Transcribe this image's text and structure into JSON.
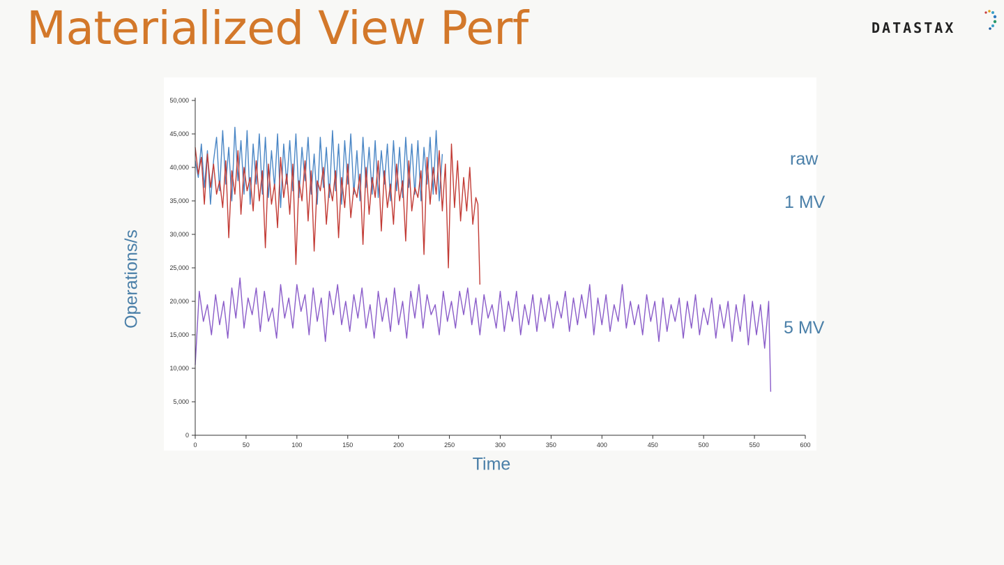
{
  "slide": {
    "title": "Materialized View Perf"
  },
  "logo": {
    "text": "DATASTAX"
  },
  "colors": {
    "title": "#d3782a",
    "label": "#4a7fa8",
    "raw": "#4a86c5",
    "mv1": "#c23b35",
    "mv5": "#8a5cc9"
  },
  "chart_data": {
    "type": "line",
    "xlabel": "Time",
    "ylabel": "Operations/s",
    "xlim": [
      0,
      600
    ],
    "ylim": [
      0,
      50000
    ],
    "x_ticks": [
      0,
      50,
      100,
      150,
      200,
      250,
      300,
      350,
      400,
      450,
      500,
      550,
      600
    ],
    "y_ticks": [
      0,
      5000,
      10000,
      15000,
      20000,
      25000,
      30000,
      35000,
      40000,
      45000,
      50000
    ],
    "x_tick_labels": [
      "0",
      "50",
      "100",
      "150",
      "200",
      "250",
      "300",
      "350",
      "400",
      "450",
      "500",
      "550",
      "600"
    ],
    "y_tick_labels": [
      "0",
      "5,000",
      "10,000",
      "15,000",
      "20,000",
      "25,000",
      "30,000",
      "35,000",
      "40,000",
      "45,000",
      "50,000"
    ],
    "grid": false,
    "series": [
      {
        "name": "raw",
        "color": "#4a86c5",
        "x": [
          0,
          3,
          6,
          9,
          12,
          15,
          18,
          21,
          24,
          27,
          30,
          33,
          36,
          39,
          42,
          45,
          48,
          51,
          54,
          57,
          60,
          63,
          66,
          69,
          72,
          75,
          78,
          81,
          84,
          87,
          90,
          93,
          96,
          99,
          102,
          105,
          108,
          111,
          114,
          117,
          120,
          123,
          126,
          129,
          132,
          135,
          138,
          141,
          144,
          147,
          150,
          153,
          156,
          159,
          162,
          165,
          168,
          171,
          174,
          177,
          180,
          183,
          186,
          189,
          192,
          195,
          198,
          201,
          204,
          207,
          210,
          213,
          216,
          219,
          222,
          225,
          228,
          231,
          234,
          237,
          240,
          243
        ],
        "y": [
          41000,
          38500,
          43500,
          37000,
          42500,
          34500,
          41000,
          44500,
          36500,
          45500,
          37500,
          43000,
          35000,
          46000,
          38000,
          44000,
          36000,
          45500,
          34500,
          43500,
          37500,
          45000,
          36000,
          44500,
          35500,
          42500,
          37000,
          45000,
          34000,
          43500,
          37500,
          44000,
          36500,
          45000,
          35500,
          43000,
          38000,
          44500,
          36000,
          42000,
          34500,
          44500,
          37000,
          43000,
          35500,
          45500,
          36500,
          43500,
          34500,
          44000,
          37500,
          45000,
          36000,
          42500,
          35000,
          44500,
          37000,
          43000,
          36000,
          44000,
          35500,
          42500,
          37500,
          43500,
          35000,
          44000,
          36500,
          43000,
          35500,
          44500,
          37000,
          43500,
          36000,
          44000,
          35000,
          43000,
          37500,
          44500,
          36000,
          45500,
          35000,
          42000
        ]
      },
      {
        "name": "1 MV",
        "color": "#c23b35",
        "x": [
          0,
          3,
          6,
          9,
          12,
          15,
          18,
          21,
          24,
          27,
          30,
          33,
          36,
          39,
          42,
          45,
          48,
          51,
          54,
          57,
          60,
          63,
          66,
          69,
          72,
          75,
          78,
          81,
          84,
          87,
          90,
          93,
          96,
          99,
          102,
          105,
          108,
          111,
          114,
          117,
          120,
          123,
          126,
          129,
          132,
          135,
          138,
          141,
          144,
          147,
          150,
          153,
          156,
          159,
          162,
          165,
          168,
          171,
          174,
          177,
          180,
          183,
          186,
          189,
          192,
          195,
          198,
          201,
          204,
          207,
          210,
          213,
          216,
          219,
          222,
          225,
          228,
          231,
          234,
          237,
          240,
          243,
          246,
          249,
          252,
          255,
          258,
          261,
          264,
          267,
          270,
          273,
          276,
          278,
          280
        ],
        "y": [
          43000,
          39000,
          41500,
          34500,
          42000,
          37000,
          40500,
          36000,
          38000,
          34000,
          41000,
          29500,
          39500,
          36000,
          42500,
          33000,
          40000,
          36500,
          38500,
          33500,
          41000,
          35000,
          39500,
          28000,
          40500,
          34500,
          37500,
          31000,
          41500,
          35500,
          39000,
          33000,
          40500,
          25500,
          38000,
          35000,
          41000,
          32000,
          39500,
          27500,
          38000,
          36500,
          40000,
          31500,
          37500,
          35000,
          39500,
          29500,
          38500,
          34000,
          40500,
          32500,
          37000,
          35500,
          39000,
          28500,
          40000,
          33000,
          38500,
          35500,
          41000,
          30500,
          39500,
          34000,
          37500,
          31500,
          40500,
          35000,
          38000,
          29000,
          41000,
          33500,
          37000,
          35500,
          39500,
          27000,
          41500,
          34500,
          40000,
          36000,
          42500,
          33500,
          40500,
          25000,
          43500,
          34000,
          41000,
          32000,
          38500,
          33500,
          40000,
          31500,
          35500,
          34500,
          22500
        ]
      },
      {
        "name": "5 MV",
        "color": "#8a5cc9",
        "x": [
          0,
          4,
          8,
          12,
          16,
          20,
          24,
          28,
          32,
          36,
          40,
          44,
          48,
          52,
          56,
          60,
          64,
          68,
          72,
          76,
          80,
          84,
          88,
          92,
          96,
          100,
          104,
          108,
          112,
          116,
          120,
          124,
          128,
          132,
          136,
          140,
          144,
          148,
          152,
          156,
          160,
          164,
          168,
          172,
          176,
          180,
          184,
          188,
          192,
          196,
          200,
          204,
          208,
          212,
          216,
          220,
          224,
          228,
          232,
          236,
          240,
          244,
          248,
          252,
          256,
          260,
          264,
          268,
          272,
          276,
          280,
          284,
          288,
          292,
          296,
          300,
          304,
          308,
          312,
          316,
          320,
          324,
          328,
          332,
          336,
          340,
          344,
          348,
          352,
          356,
          360,
          364,
          368,
          372,
          376,
          380,
          384,
          388,
          392,
          396,
          400,
          404,
          408,
          412,
          416,
          420,
          424,
          428,
          432,
          436,
          440,
          444,
          448,
          452,
          456,
          460,
          464,
          468,
          472,
          476,
          480,
          484,
          488,
          492,
          496,
          500,
          504,
          508,
          512,
          516,
          520,
          524,
          528,
          532,
          536,
          540,
          544,
          548,
          552,
          556,
          560,
          564,
          566
        ],
        "y": [
          10500,
          21500,
          17000,
          19500,
          15000,
          21000,
          16500,
          20000,
          14500,
          22000,
          17500,
          23500,
          16000,
          20500,
          18000,
          22000,
          15500,
          21500,
          17000,
          19000,
          14500,
          22500,
          17500,
          20500,
          16000,
          22500,
          18500,
          21000,
          15000,
          22000,
          17000,
          20500,
          14000,
          21500,
          18000,
          22500,
          16500,
          20000,
          15500,
          21000,
          17500,
          22000,
          16000,
          19500,
          14500,
          21500,
          17000,
          20500,
          15500,
          22000,
          16500,
          20000,
          14500,
          21500,
          17500,
          22500,
          16000,
          21000,
          18000,
          19500,
          15000,
          21500,
          17000,
          20000,
          16000,
          21500,
          18000,
          22000,
          16500,
          20500,
          15000,
          21000,
          17500,
          19500,
          16000,
          21500,
          15500,
          20000,
          17000,
          21500,
          15000,
          19500,
          16500,
          21000,
          15500,
          20500,
          17000,
          21000,
          16000,
          20000,
          17500,
          21500,
          15500,
          20500,
          16500,
          21000,
          17500,
          22500,
          15000,
          20500,
          16500,
          21000,
          15500,
          19500,
          17000,
          22500,
          16000,
          20000,
          16500,
          19500,
          15000,
          21000,
          17000,
          20000,
          14000,
          20500,
          15500,
          19500,
          17000,
          20500,
          14500,
          20000,
          16000,
          21000,
          15000,
          19000,
          16500,
          20500,
          14500,
          19500,
          16000,
          20000,
          14000,
          19500,
          15500,
          21000,
          13500,
          20000,
          15000,
          19500,
          13000,
          20000,
          6500
        ]
      }
    ],
    "series_labels": [
      "raw",
      "1 MV",
      "5 MV"
    ]
  }
}
